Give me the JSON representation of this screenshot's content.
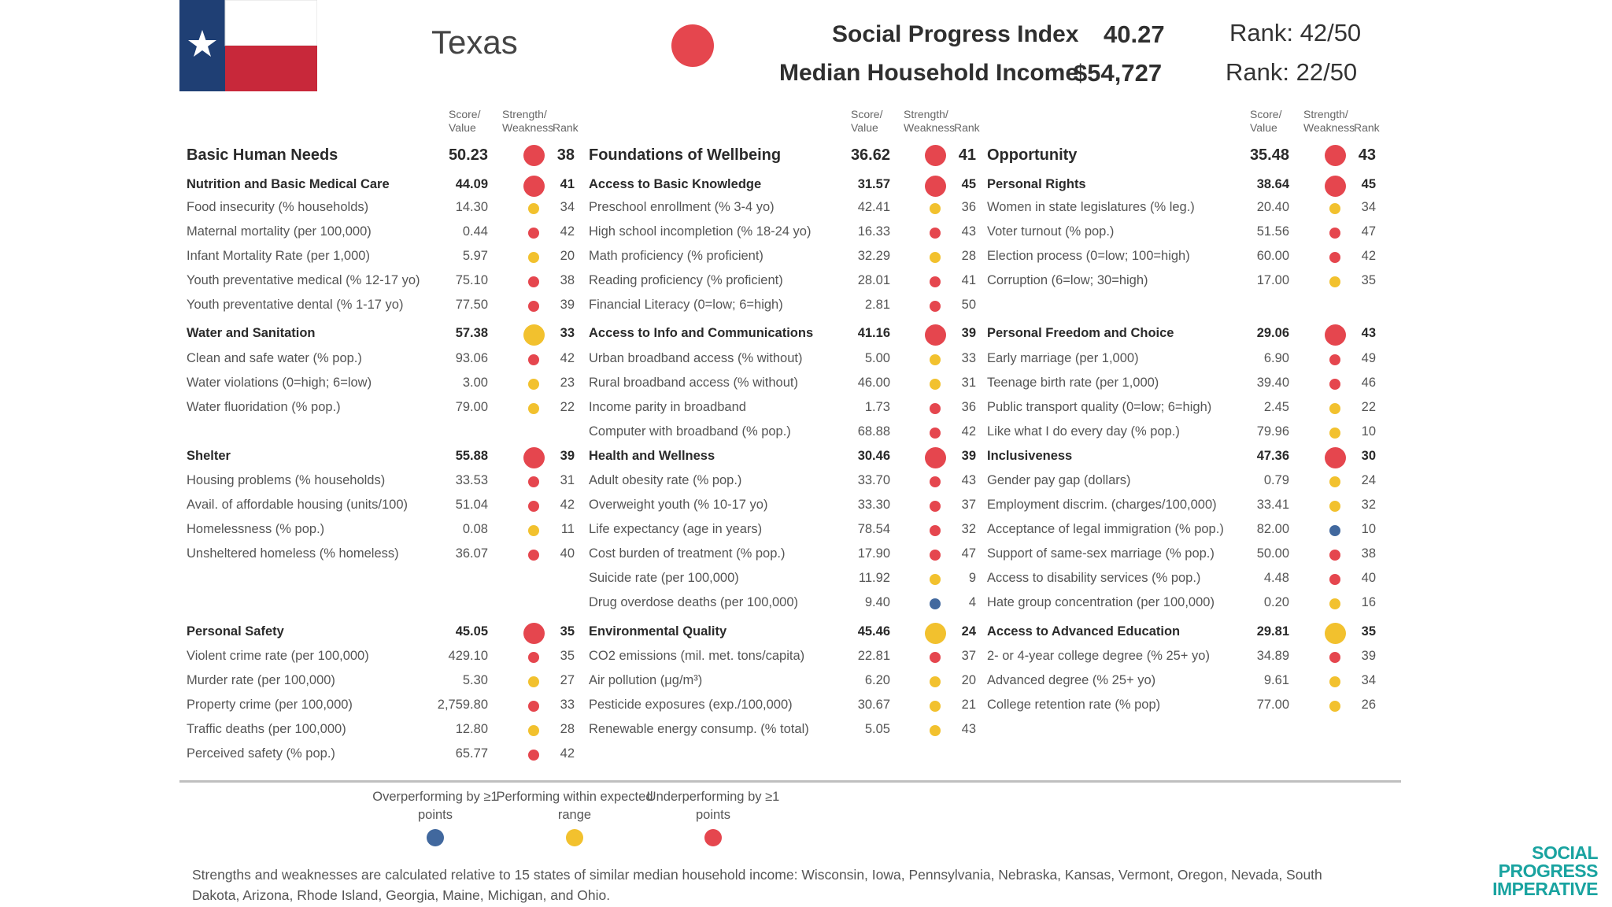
{
  "header": {
    "state_name": "Texas",
    "spi_label": "Social Progress Index",
    "spi_value": "40.27",
    "spi_rank": "Rank: 42/50",
    "income_label": "Median Household Income",
    "income_value": "$54,727",
    "income_rank": "Rank: 22/50"
  },
  "column_headers": {
    "score_line1": "Score/",
    "score_line2": "Value",
    "sw_line1": "Strength/",
    "sw_line2": "Weakness",
    "rank": "Rank"
  },
  "colors": {
    "red": "#e5464e",
    "yellow": "#f2c12e",
    "blue": "#41689e",
    "flag_blue": "#1f3f74",
    "flag_red": "#c8283a",
    "teal": "#19a3a0"
  },
  "columns": [
    {
      "sections": [
        {
          "type": "dim",
          "label": "Basic Human Needs",
          "value": "50.23",
          "rank": "38",
          "color": "red"
        },
        {
          "type": "comp",
          "label": "Nutrition and Basic Medical Care",
          "value": "44.09",
          "rank": "41",
          "color": "red"
        },
        {
          "type": "ind",
          "label": "Food insecurity (% households)",
          "value": "14.30",
          "rank": "34",
          "color": "yellow"
        },
        {
          "type": "ind",
          "label": "Maternal mortality (per 100,000)",
          "value": "0.44",
          "rank": "42",
          "color": "red"
        },
        {
          "type": "ind",
          "label": "Infant Mortality Rate (per 1,000)",
          "value": "5.97",
          "rank": "20",
          "color": "yellow"
        },
        {
          "type": "ind",
          "label": "Youth preventative medical (% 12-17 yo)",
          "value": "75.10",
          "rank": "38",
          "color": "red"
        },
        {
          "type": "ind",
          "label": "Youth preventative dental (% 1-17 yo)",
          "value": "77.50",
          "rank": "39",
          "color": "red"
        },
        {
          "type": "comp",
          "label": "Water and Sanitation",
          "value": "57.38",
          "rank": "33",
          "color": "yellow"
        },
        {
          "type": "ind",
          "label": "Clean and safe water (% pop.)",
          "value": "93.06",
          "rank": "42",
          "color": "red"
        },
        {
          "type": "ind",
          "label": "Water violations (0=high; 6=low)",
          "value": "3.00",
          "rank": "23",
          "color": "yellow"
        },
        {
          "type": "ind",
          "label": "Water fluoridation (% pop.)",
          "value": "79.00",
          "rank": "22",
          "color": "yellow"
        },
        {
          "type": "comp",
          "label": "Shelter",
          "value": "55.88",
          "rank": "39",
          "color": "red"
        },
        {
          "type": "ind",
          "label": "Housing problems (% households)",
          "value": "33.53",
          "rank": "31",
          "color": "red"
        },
        {
          "type": "ind",
          "label": "Avail. of affordable housing (units/100)",
          "value": "51.04",
          "rank": "42",
          "color": "red"
        },
        {
          "type": "ind",
          "label": "Homelessness (% pop.)",
          "value": "0.08",
          "rank": "11",
          "color": "yellow"
        },
        {
          "type": "ind",
          "label": "Unsheltered homeless (% homeless)",
          "value": "36.07",
          "rank": "40",
          "color": "red"
        },
        {
          "type": "comp",
          "label": "Personal Safety",
          "value": "45.05",
          "rank": "35",
          "color": "red"
        },
        {
          "type": "ind",
          "label": "Violent crime rate (per 100,000)",
          "value": "429.10",
          "rank": "35",
          "color": "red"
        },
        {
          "type": "ind",
          "label": "Murder rate (per 100,000)",
          "value": "5.30",
          "rank": "27",
          "color": "yellow"
        },
        {
          "type": "ind",
          "label": "Property crime (per 100,000)",
          "value": "2,759.80",
          "rank": "33",
          "color": "red"
        },
        {
          "type": "ind",
          "label": "Traffic deaths (per 100,000)",
          "value": "12.80",
          "rank": "28",
          "color": "yellow"
        },
        {
          "type": "ind",
          "label": "Perceived safety (% pop.)",
          "value": "65.77",
          "rank": "42",
          "color": "red"
        }
      ]
    },
    {
      "sections": [
        {
          "type": "dim",
          "label": "Foundations of Wellbeing",
          "value": "36.62",
          "rank": "41",
          "color": "red"
        },
        {
          "type": "comp",
          "label": "Access to Basic Knowledge",
          "value": "31.57",
          "rank": "45",
          "color": "red"
        },
        {
          "type": "ind",
          "label": "Preschool enrollment (% 3-4 yo)",
          "value": "42.41",
          "rank": "36",
          "color": "yellow"
        },
        {
          "type": "ind",
          "label": "High school incompletion (% 18-24 yo)",
          "value": "16.33",
          "rank": "43",
          "color": "red"
        },
        {
          "type": "ind",
          "label": "Math proficiency (% proficient)",
          "value": "32.29",
          "rank": "28",
          "color": "yellow"
        },
        {
          "type": "ind",
          "label": "Reading proficiency (% proficient)",
          "value": "28.01",
          "rank": "41",
          "color": "red"
        },
        {
          "type": "ind",
          "label": "Financial Literacy (0=low; 6=high)",
          "value": "2.81",
          "rank": "50",
          "color": "red"
        },
        {
          "type": "comp",
          "label": "Access to Info and Communications",
          "value": "41.16",
          "rank": "39",
          "color": "red"
        },
        {
          "type": "ind",
          "label": "Urban broadband access (% without)",
          "value": "5.00",
          "rank": "33",
          "color": "yellow"
        },
        {
          "type": "ind",
          "label": "Rural broadband access (% without)",
          "value": "46.00",
          "rank": "31",
          "color": "yellow"
        },
        {
          "type": "ind",
          "label": "Income parity in broadband",
          "value": "1.73",
          "rank": "36",
          "color": "red"
        },
        {
          "type": "ind",
          "label": "Computer with broadband (% pop.)",
          "value": "68.88",
          "rank": "42",
          "color": "red"
        },
        {
          "type": "comp",
          "label": "Health and Wellness",
          "value": "30.46",
          "rank": "39",
          "color": "red"
        },
        {
          "type": "ind",
          "label": "Adult obesity rate (% pop.)",
          "value": "33.70",
          "rank": "43",
          "color": "red"
        },
        {
          "type": "ind",
          "label": "Overweight youth (% 10-17 yo)",
          "value": "33.30",
          "rank": "37",
          "color": "red"
        },
        {
          "type": "ind",
          "label": "Life expectancy (age in years)",
          "value": "78.54",
          "rank": "32",
          "color": "red"
        },
        {
          "type": "ind",
          "label": "Cost burden of treatment (% pop.)",
          "value": "17.90",
          "rank": "47",
          "color": "red"
        },
        {
          "type": "ind",
          "label": "Suicide rate (per 100,000)",
          "value": "11.92",
          "rank": "9",
          "color": "yellow"
        },
        {
          "type": "ind",
          "label": "Drug overdose deaths (per 100,000)",
          "value": "9.40",
          "rank": "4",
          "color": "blue"
        },
        {
          "type": "comp",
          "label": "Environmental Quality",
          "value": "45.46",
          "rank": "24",
          "color": "yellow"
        },
        {
          "type": "ind",
          "label": "CO2 emissions (mil. met. tons/capita)",
          "value": "22.81",
          "rank": "37",
          "color": "red"
        },
        {
          "type": "ind",
          "label": "Air pollution (μg/m³)",
          "value": "6.20",
          "rank": "20",
          "color": "yellow"
        },
        {
          "type": "ind",
          "label": "Pesticide exposures (exp./100,000)",
          "value": "30.67",
          "rank": "21",
          "color": "yellow"
        },
        {
          "type": "ind",
          "label": "Renewable energy consump. (% total)",
          "value": "5.05",
          "rank": "43",
          "color": "yellow"
        }
      ]
    },
    {
      "sections": [
        {
          "type": "dim",
          "label": "Opportunity",
          "value": "35.48",
          "rank": "43",
          "color": "red"
        },
        {
          "type": "comp",
          "label": "Personal Rights",
          "value": "38.64",
          "rank": "45",
          "color": "red"
        },
        {
          "type": "ind",
          "label": "Women in state legislatures (% leg.)",
          "value": "20.40",
          "rank": "34",
          "color": "yellow"
        },
        {
          "type": "ind",
          "label": "Voter turnout (% pop.)",
          "value": "51.56",
          "rank": "47",
          "color": "red"
        },
        {
          "type": "ind",
          "label": "Election process (0=low; 100=high)",
          "value": "60.00",
          "rank": "42",
          "color": "red"
        },
        {
          "type": "ind",
          "label": "Corruption (6=low; 30=high)",
          "value": "17.00",
          "rank": "35",
          "color": "yellow"
        },
        {
          "type": "comp",
          "label": "Personal Freedom and Choice",
          "value": "29.06",
          "rank": "43",
          "color": "red"
        },
        {
          "type": "ind",
          "label": "Early marriage (per 1,000)",
          "value": "6.90",
          "rank": "49",
          "color": "red"
        },
        {
          "type": "ind",
          "label": "Teenage birth rate (per 1,000)",
          "value": "39.40",
          "rank": "46",
          "color": "red"
        },
        {
          "type": "ind",
          "label": "Public transport quality (0=low; 6=high)",
          "value": "2.45",
          "rank": "22",
          "color": "yellow"
        },
        {
          "type": "ind",
          "label": "Like what I do every day (% pop.)",
          "value": "79.96",
          "rank": "10",
          "color": "yellow"
        },
        {
          "type": "comp",
          "label": "Inclusiveness",
          "value": "47.36",
          "rank": "30",
          "color": "red"
        },
        {
          "type": "ind",
          "label": "Gender pay gap (dollars)",
          "value": "0.79",
          "rank": "24",
          "color": "yellow"
        },
        {
          "type": "ind",
          "label": "Employment discrim. (charges/100,000)",
          "value": "33.41",
          "rank": "32",
          "color": "yellow"
        },
        {
          "type": "ind",
          "label": "Acceptance of legal immigration (% pop.)",
          "value": "82.00",
          "rank": "10",
          "color": "blue"
        },
        {
          "type": "ind",
          "label": "Support of same-sex marriage (% pop.)",
          "value": "50.00",
          "rank": "38",
          "color": "red"
        },
        {
          "type": "ind",
          "label": "Access to disability services (% pop.)",
          "value": "4.48",
          "rank": "40",
          "color": "red"
        },
        {
          "type": "ind",
          "label": "Hate group concentration (per 100,000)",
          "value": "0.20",
          "rank": "16",
          "color": "yellow"
        },
        {
          "type": "comp",
          "label": "Access to Advanced Education",
          "value": "29.81",
          "rank": "35",
          "color": "yellow"
        },
        {
          "type": "ind",
          "label": "2- or 4-year college degree (% 25+ yo)",
          "value": "34.89",
          "rank": "39",
          "color": "red"
        },
        {
          "type": "ind",
          "label": "Advanced degree (% 25+ yo)",
          "value": "9.61",
          "rank": "34",
          "color": "yellow"
        },
        {
          "type": "ind",
          "label": "College retention rate (% pop)",
          "value": "77.00",
          "rank": "26",
          "color": "yellow"
        }
      ]
    }
  ],
  "legend": {
    "over": "Overperforming by ≥1 points",
    "within": "Performing within expected range",
    "under": "Underperforming by ≥1 points"
  },
  "footnote": "Strengths and weaknesses are calculated relative to 15 states of similar median household income: Wisconsin, Iowa, Pennsylvania, Nebraska, Kansas, Vermont, Oregon, Nevada, South Dakota, Arizona, Rhode Island, Georgia, Maine, Michigan, and Ohio.",
  "logo": {
    "line1": "SOCIAL",
    "line2": "PROGRESS",
    "line3": "IMPERATIVE"
  }
}
